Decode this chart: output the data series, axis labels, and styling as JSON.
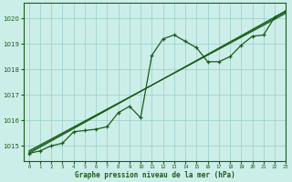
{
  "bg_color": "#cceee8",
  "grid_color": "#99cccc",
  "line_color": "#1a5c1a",
  "marker_color": "#1a5c1a",
  "title": "Graphe pression niveau de la mer (hPa)",
  "xlim": [
    -0.5,
    23
  ],
  "ylim": [
    1014.4,
    1020.6
  ],
  "yticks": [
    1015,
    1016,
    1017,
    1018,
    1019,
    1020
  ],
  "xticks": [
    0,
    1,
    2,
    3,
    4,
    5,
    6,
    7,
    8,
    9,
    10,
    11,
    12,
    13,
    14,
    15,
    16,
    17,
    18,
    19,
    20,
    21,
    22,
    23
  ],
  "series1": {
    "x": [
      0,
      1,
      2,
      3,
      4,
      5,
      6,
      7,
      8,
      9,
      10,
      11,
      12,
      13,
      14,
      15,
      16,
      17,
      18,
      19,
      20,
      21,
      22,
      23
    ],
    "y": [
      1014.7,
      1014.8,
      1015.0,
      1015.1,
      1015.55,
      1015.6,
      1015.65,
      1015.75,
      1016.3,
      1016.55,
      1016.1,
      1018.55,
      1019.2,
      1019.35,
      1019.1,
      1018.85,
      1018.3,
      1018.3,
      1018.5,
      1018.95,
      1019.3,
      1019.35,
      1020.05,
      1020.3
    ]
  },
  "series2": {
    "x": [
      0,
      23
    ],
    "y": [
      1014.7,
      1020.3
    ]
  },
  "series3": {
    "x": [
      0,
      23
    ],
    "y": [
      1014.75,
      1020.25
    ]
  },
  "series4": {
    "x": [
      0,
      23
    ],
    "y": [
      1014.8,
      1020.2
    ]
  }
}
